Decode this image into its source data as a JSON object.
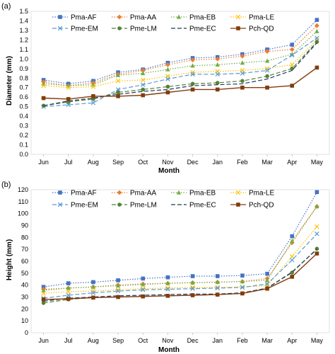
{
  "chart_data": [
    {
      "type": "line",
      "panel_label": "(a)",
      "xlabel": "Month",
      "ylabel": "Diameter (mm)",
      "ylim": [
        0,
        1.5
      ],
      "ytick_step": 0.1,
      "ytick_decimals": 1,
      "grid": false,
      "legend_placement": "top",
      "categories": [
        "Jun",
        "Jul",
        "Aug",
        "Sep",
        "Oct",
        "Nov",
        "Dec",
        "Jan",
        "Feb",
        "Mar",
        "Apr",
        "May"
      ],
      "series": [
        {
          "name": "Pma-AF",
          "values": [
            0.78,
            0.74,
            0.77,
            0.86,
            0.89,
            0.96,
            1.01,
            1.02,
            1.05,
            1.1,
            1.15,
            1.41
          ]
        },
        {
          "name": "Pma-AA",
          "values": [
            0.76,
            0.72,
            0.75,
            0.84,
            0.88,
            0.94,
            0.99,
            1.0,
            1.03,
            1.08,
            1.1,
            1.35
          ]
        },
        {
          "name": "Pma-EB",
          "values": [
            0.74,
            0.72,
            0.73,
            0.83,
            0.85,
            0.89,
            0.93,
            0.94,
            0.96,
            0.98,
            1.05,
            1.29
          ]
        },
        {
          "name": "Pma-LE",
          "values": [
            0.72,
            0.7,
            0.71,
            0.77,
            0.78,
            0.82,
            0.86,
            0.87,
            0.88,
            0.9,
            0.94,
            1.2
          ]
        },
        {
          "name": "Pme-EM",
          "values": [
            0.5,
            0.52,
            0.54,
            0.68,
            0.73,
            0.79,
            0.84,
            0.84,
            0.85,
            0.88,
            1.04,
            1.22
          ]
        },
        {
          "name": "Pme-LM",
          "values": [
            0.51,
            0.55,
            0.58,
            0.65,
            0.68,
            0.71,
            0.74,
            0.75,
            0.77,
            0.82,
            0.9,
            1.18
          ]
        },
        {
          "name": "Pme-EC",
          "values": [
            0.51,
            0.56,
            0.59,
            0.63,
            0.66,
            0.68,
            0.72,
            0.73,
            0.74,
            0.79,
            0.88,
            1.17
          ]
        },
        {
          "name": "Pch-QD",
          "values": [
            0.59,
            0.58,
            0.61,
            0.61,
            0.62,
            0.65,
            0.68,
            0.68,
            0.7,
            0.7,
            0.72,
            0.91
          ]
        }
      ]
    },
    {
      "type": "line",
      "panel_label": "(b)",
      "xlabel": "Month",
      "ylabel": "Height (mm)",
      "ylim": [
        0,
        120
      ],
      "ytick_step": 10,
      "ytick_decimals": 0,
      "grid": false,
      "legend_placement": "top",
      "categories": [
        "Jun",
        "Jul",
        "Aug",
        "Sep",
        "Oct",
        "Nov",
        "Dec",
        "Jan",
        "Feb",
        "Mar",
        "Apr",
        "May"
      ],
      "series": [
        {
          "name": "Pma-AF",
          "values": [
            38.5,
            41.5,
            42.5,
            44,
            45.5,
            46.5,
            47.5,
            47.5,
            48,
            49.5,
            81,
            118
          ]
        },
        {
          "name": "Pma-AA",
          "values": [
            36.5,
            37.5,
            38.5,
            40,
            41,
            41.5,
            42,
            42.5,
            43,
            45.5,
            75.5,
            106
          ]
        },
        {
          "name": "Pma-EB",
          "values": [
            35.5,
            37.5,
            38.5,
            39.5,
            40.5,
            41.5,
            42,
            42.5,
            43,
            44,
            77,
            106
          ]
        },
        {
          "name": "Pma-LE",
          "values": [
            33,
            34.5,
            35,
            36,
            37,
            37.5,
            38,
            38,
            38.5,
            39.5,
            64,
            89
          ]
        },
        {
          "name": "Pme-EM",
          "values": [
            29,
            31.5,
            33.5,
            35,
            36,
            36.5,
            37,
            37.5,
            38,
            41,
            61,
            83
          ]
        },
        {
          "name": "Pme-LM",
          "values": [
            25,
            28,
            29.5,
            30,
            30.5,
            31,
            31.5,
            32,
            33,
            37.5,
            50.5,
            70.5
          ]
        },
        {
          "name": "Pme-EC",
          "values": [
            26.5,
            29,
            30,
            31,
            31.5,
            32,
            32.5,
            32.5,
            33.5,
            37.5,
            51,
            70
          ]
        },
        {
          "name": "Pch-QD",
          "values": [
            28,
            28.5,
            29.5,
            30,
            30.5,
            31,
            31.5,
            32,
            33,
            37,
            47,
            66.5
          ]
        }
      ]
    }
  ],
  "series_styles": [
    {
      "color": "#4472C4",
      "dash": "1.5,2",
      "marker": "square"
    },
    {
      "color": "#ED7D31",
      "dash": "1.5,2",
      "marker": "diamond"
    },
    {
      "color": "#70AD47",
      "dash": "1.5,2",
      "marker": "triangle"
    },
    {
      "color": "#FFC000",
      "dash": "1.5,2",
      "marker": "x"
    },
    {
      "color": "#5B9BD5",
      "dash": "6,3",
      "marker": "x"
    },
    {
      "color": "#548235",
      "dash": "6,3",
      "marker": "circle"
    },
    {
      "color": "#1F3864",
      "dash": "6,3",
      "marker": "none"
    },
    {
      "color": "#843C0C",
      "dash": "",
      "marker": "square"
    }
  ]
}
